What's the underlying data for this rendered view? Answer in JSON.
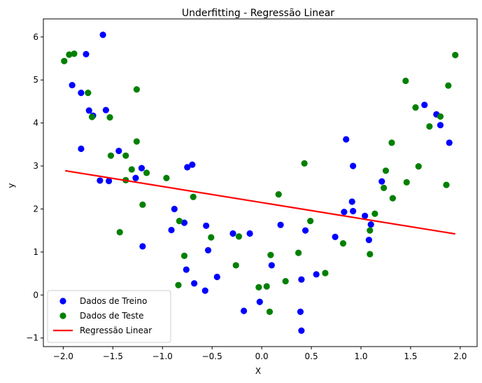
{
  "chart_data": {
    "type": "scatter",
    "title": "Underfitting - Regressão Linear",
    "xlabel": "X",
    "ylabel": "y",
    "xlim": [
      -2.2,
      2.17
    ],
    "ylim": [
      -1.2,
      6.42
    ],
    "x_ticks": [
      -2.0,
      -1.5,
      -1.0,
      -0.5,
      0.0,
      0.5,
      1.0,
      1.5,
      2.0
    ],
    "x_tick_labels": [
      "−2.0",
      "−1.5",
      "−1.0",
      "−0.5",
      "0.0",
      "0.5",
      "1.0",
      "1.5",
      "2.0"
    ],
    "y_ticks": [
      -1,
      0,
      1,
      2,
      3,
      4,
      5,
      6
    ],
    "y_tick_labels": [
      "−1",
      "0",
      "1",
      "2",
      "3",
      "4",
      "5",
      "6"
    ],
    "grid": false,
    "legend": {
      "position": "lower-left",
      "entries": [
        {
          "label": "Dados de Treino",
          "color": "#0000ff",
          "kind": "point"
        },
        {
          "label": "Dados de Teste",
          "color": "#008000",
          "kind": "point"
        },
        {
          "label": "Regressão Linear",
          "color": "#ff0000",
          "kind": "line"
        }
      ]
    },
    "series": [
      {
        "name": "Dados de Treino",
        "kind": "scatter",
        "color": "#0000ff",
        "points": [
          [
            -1.91,
            4.88
          ],
          [
            -1.82,
            4.7
          ],
          [
            -1.77,
            5.6
          ],
          [
            -1.6,
            6.05
          ],
          [
            -1.82,
            3.4
          ],
          [
            -1.74,
            4.29
          ],
          [
            -1.7,
            4.17
          ],
          [
            -1.57,
            4.3
          ],
          [
            -1.63,
            2.66
          ],
          [
            -1.54,
            2.65
          ],
          [
            -1.44,
            3.35
          ],
          [
            -1.27,
            2.72
          ],
          [
            -1.21,
            2.95
          ],
          [
            -1.2,
            1.13
          ],
          [
            -0.91,
            1.51
          ],
          [
            -0.88,
            2.0
          ],
          [
            -0.78,
            1.68
          ],
          [
            -0.76,
            0.59
          ],
          [
            -0.75,
            2.97
          ],
          [
            -0.7,
            3.03
          ],
          [
            -0.68,
            0.27
          ],
          [
            -0.57,
            0.1
          ],
          [
            -0.56,
            1.61
          ],
          [
            -0.54,
            1.04
          ],
          [
            -0.45,
            0.42
          ],
          [
            -0.29,
            1.43
          ],
          [
            -0.18,
            -0.37
          ],
          [
            -0.12,
            1.43
          ],
          [
            -0.02,
            -0.16
          ],
          [
            0.1,
            0.69
          ],
          [
            0.19,
            1.63
          ],
          [
            0.39,
            -0.39
          ],
          [
            0.4,
            0.36
          ],
          [
            0.44,
            1.5
          ],
          [
            0.4,
            -0.83
          ],
          [
            0.55,
            0.48
          ],
          [
            0.74,
            1.35
          ],
          [
            0.83,
            1.93
          ],
          [
            0.85,
            3.62
          ],
          [
            0.91,
            2.17
          ],
          [
            0.92,
            3.0
          ],
          [
            0.92,
            1.95
          ],
          [
            1.04,
            1.84
          ],
          [
            1.08,
            1.28
          ],
          [
            1.1,
            1.64
          ],
          [
            1.21,
            2.64
          ],
          [
            1.64,
            4.42
          ],
          [
            1.76,
            4.2
          ],
          [
            1.8,
            3.95
          ],
          [
            1.89,
            3.54
          ]
        ]
      },
      {
        "name": "Dados de Teste",
        "kind": "scatter",
        "color": "#008000",
        "points": [
          [
            -1.99,
            5.44
          ],
          [
            -1.94,
            5.59
          ],
          [
            -1.89,
            5.61
          ],
          [
            -1.75,
            4.7
          ],
          [
            -1.71,
            4.14
          ],
          [
            -1.53,
            4.13
          ],
          [
            -1.52,
            3.24
          ],
          [
            -1.37,
            3.24
          ],
          [
            -1.26,
            4.78
          ],
          [
            -1.26,
            3.57
          ],
          [
            -1.31,
            2.92
          ],
          [
            -1.37,
            2.67
          ],
          [
            -1.43,
            1.46
          ],
          [
            -1.2,
            2.1
          ],
          [
            -1.16,
            2.84
          ],
          [
            -0.96,
            2.72
          ],
          [
            -0.83,
            1.72
          ],
          [
            -0.84,
            0.23
          ],
          [
            -0.78,
            0.91
          ],
          [
            -0.69,
            2.28
          ],
          [
            -0.51,
            1.34
          ],
          [
            -0.26,
            0.69
          ],
          [
            -0.23,
            1.36
          ],
          [
            -0.03,
            0.18
          ],
          [
            0.05,
            0.2
          ],
          [
            0.08,
            -0.39
          ],
          [
            0.09,
            0.93
          ],
          [
            0.17,
            2.34
          ],
          [
            0.24,
            0.32
          ],
          [
            0.37,
            0.98
          ],
          [
            0.43,
            3.06
          ],
          [
            0.49,
            1.72
          ],
          [
            0.64,
            0.51
          ],
          [
            0.82,
            1.2
          ],
          [
            1.09,
            0.95
          ],
          [
            1.09,
            1.5
          ],
          [
            1.14,
            1.89
          ],
          [
            1.23,
            2.49
          ],
          [
            1.25,
            2.89
          ],
          [
            1.31,
            3.54
          ],
          [
            1.32,
            2.25
          ],
          [
            1.45,
            4.98
          ],
          [
            1.46,
            2.62
          ],
          [
            1.55,
            4.36
          ],
          [
            1.58,
            2.99
          ],
          [
            1.69,
            3.92
          ],
          [
            1.8,
            4.15
          ],
          [
            1.86,
            2.56
          ],
          [
            1.88,
            4.87
          ],
          [
            1.95,
            5.58
          ]
        ]
      },
      {
        "name": "Regressão Linear",
        "kind": "line",
        "color": "#ff0000",
        "points": [
          [
            -1.98,
            2.89
          ],
          [
            1.95,
            1.42
          ]
        ]
      }
    ]
  }
}
